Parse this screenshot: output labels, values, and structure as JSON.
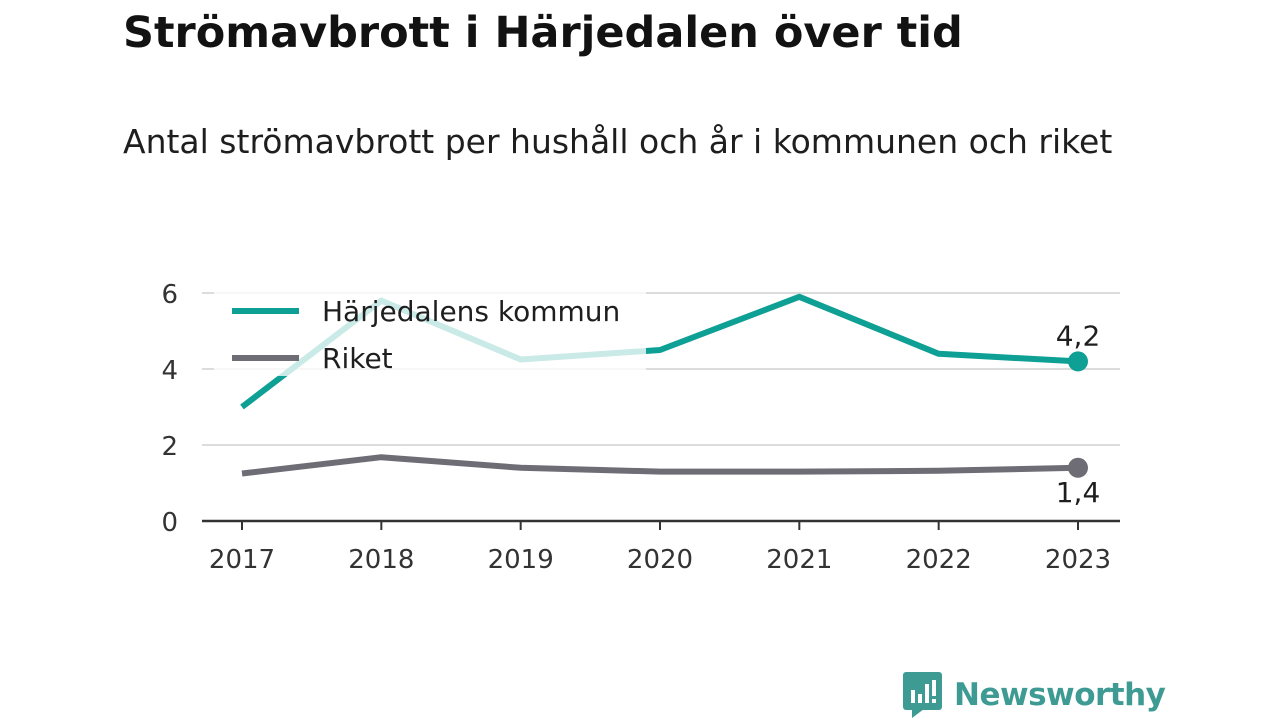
{
  "chart_data": {
    "type": "line",
    "title": "Strömavbrott i Härjedalen över tid",
    "subtitle": "Antal strömavbrott per hushåll och år i kommunen och riket",
    "x": [
      "2017",
      "2018",
      "2019",
      "2020",
      "2021",
      "2022",
      "2023"
    ],
    "yticks": [
      "0",
      "2",
      "4",
      "6"
    ],
    "ylim": [
      0,
      6
    ],
    "grid": true,
    "legend_position": "top-left",
    "series": [
      {
        "name": "Härjedalens kommun",
        "color": "#0e9f95",
        "values": [
          3.0,
          5.8,
          4.25,
          4.5,
          5.9,
          4.4,
          4.2
        ],
        "end_label": "4,2"
      },
      {
        "name": "Riket",
        "color": "#6e6d76",
        "values": [
          1.25,
          1.68,
          1.4,
          1.3,
          1.3,
          1.32,
          1.4
        ],
        "end_label": "1,4"
      }
    ]
  },
  "brand": {
    "name": "Newsworthy",
    "color": "#3e9b93"
  }
}
